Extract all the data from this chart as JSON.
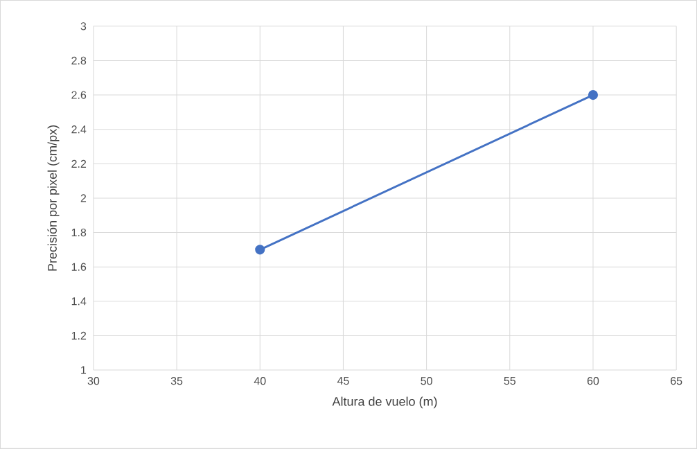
{
  "chart_data": {
    "type": "line",
    "xlabel": "Altura de vuelo (m)",
    "ylabel": "Precisión por pixel (cm/px)",
    "x": [
      40,
      60
    ],
    "series": [
      {
        "color": "#4472c4",
        "values": [
          1.7,
          2.6
        ]
      }
    ],
    "xlim": [
      30,
      65
    ],
    "xticks": [
      30,
      35,
      40,
      45,
      50,
      55,
      60,
      65
    ],
    "ylim": [
      1,
      3
    ],
    "yticks": [
      1,
      1.2,
      1.4,
      1.6,
      1.8,
      2,
      2.2,
      2.4,
      2.6,
      2.8,
      3
    ],
    "grid": true,
    "marker": "circle",
    "line_style": "solid"
  }
}
